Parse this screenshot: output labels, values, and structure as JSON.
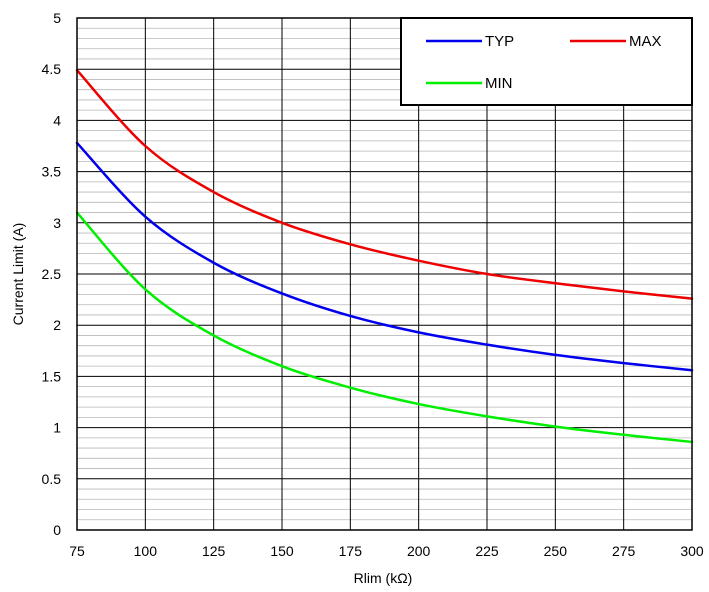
{
  "chart_data": {
    "type": "line",
    "title": "",
    "xlabel": "Rlim (kΩ)",
    "ylabel": "Current Limit (A)",
    "xlim": [
      75,
      300
    ],
    "ylim": [
      0,
      5
    ],
    "x_ticks": [
      75,
      100,
      125,
      150,
      175,
      200,
      225,
      250,
      275,
      300
    ],
    "y_ticks": [
      0,
      0.5,
      1,
      1.5,
      2,
      2.5,
      3,
      3.5,
      4,
      4.5,
      5
    ],
    "x_tick_labels": [
      "75",
      "100",
      "125",
      "150",
      "175",
      "200",
      "225",
      "250",
      "275",
      "300"
    ],
    "y_tick_labels": [
      "0",
      "0.5",
      "1",
      "1.5",
      "2",
      "2.5",
      "3",
      "3.5",
      "4",
      "4.5",
      "5"
    ],
    "grid": true,
    "minor_grid": true,
    "legend_position": "top-right",
    "x": [
      75,
      100,
      125,
      150,
      175,
      200,
      225,
      250,
      275,
      300
    ],
    "series": [
      {
        "name": "TYP",
        "color": "#0000ee",
        "values": [
          3.78,
          3.06,
          2.61,
          2.31,
          2.09,
          1.93,
          1.81,
          1.71,
          1.63,
          1.56
        ]
      },
      {
        "name": "MAX",
        "color": "#ee0000",
        "values": [
          4.49,
          3.75,
          3.3,
          3.0,
          2.79,
          2.63,
          2.5,
          2.41,
          2.33,
          2.26
        ]
      },
      {
        "name": "MIN",
        "color": "#00ee00",
        "values": [
          3.1,
          2.35,
          1.9,
          1.6,
          1.39,
          1.23,
          1.11,
          1.01,
          0.93,
          0.86
        ]
      }
    ]
  }
}
